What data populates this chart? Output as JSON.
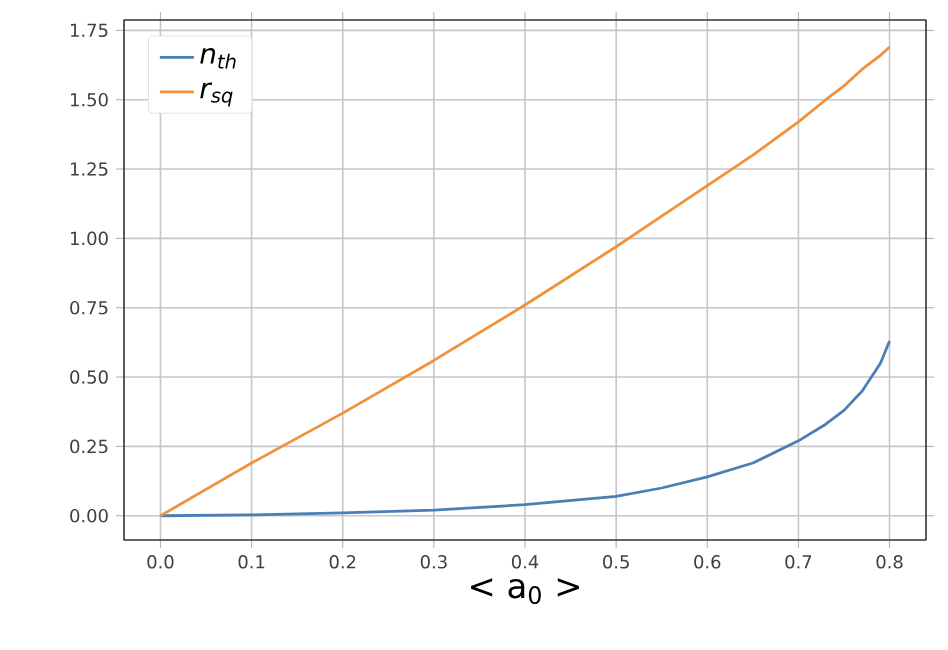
{
  "chart_data": {
    "type": "line",
    "xlabel": "< a$_{0}$ >",
    "x": [
      0,
      0.1,
      0.2,
      0.3,
      0.4,
      0.5,
      0.55,
      0.6,
      0.65,
      0.7,
      0.73,
      0.75,
      0.77,
      0.79,
      0.8
    ],
    "series": [
      {
        "name": "n$_{th}$",
        "color": "#4a7fb5",
        "values": [
          0,
          0.003,
          0.01,
          0.02,
          0.04,
          0.07,
          0.1,
          0.14,
          0.19,
          0.27,
          0.33,
          0.38,
          0.45,
          0.55,
          0.63
        ]
      },
      {
        "name": "r$_{sq}$",
        "color": "#f0923b",
        "values": [
          0,
          0.19,
          0.37,
          0.56,
          0.76,
          0.97,
          1.08,
          1.19,
          1.3,
          1.42,
          1.5,
          1.55,
          1.61,
          1.66,
          1.69
        ]
      }
    ],
    "xlim": [
      -0.04,
      0.84
    ],
    "ylim": [
      -0.0875,
      1.7875
    ],
    "xticks": [
      {
        "value": 0,
        "label": "0.0"
      },
      0.1,
      0.2,
      0.3,
      0.4,
      0.5,
      0.6,
      0.7,
      0.8
    ],
    "yticks": [
      {
        "value": 0,
        "label": "0.00"
      },
      0.25,
      {
        "value": 0.5,
        "label": "0.50"
      },
      0.75,
      {
        "value": 1,
        "label": "1.00"
      },
      1.25,
      {
        "value": 1.5,
        "label": "1.50"
      },
      1.75
    ],
    "grid": true,
    "legend": "top left",
    "marker": "none",
    "line_style": "solid"
  }
}
